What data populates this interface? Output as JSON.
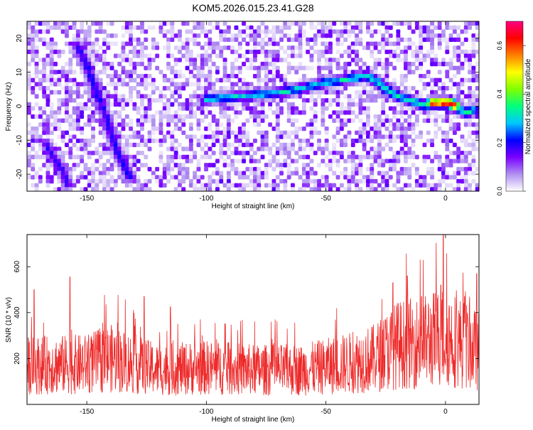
{
  "title": "KOM5.2026.015.23.41.G28",
  "chart_data": [
    {
      "type": "heatmap",
      "xlabel": "Height of straight line (km)",
      "ylabel": "Frequency (Hz)",
      "xlim": [
        -175,
        14
      ],
      "ylim": [
        -25,
        25
      ],
      "x_ticks": [
        -150,
        -100,
        -50,
        0
      ],
      "y_ticks": [
        -20,
        -10,
        0,
        10,
        20
      ],
      "colorbar": {
        "label": "Normalized spectral amplitude",
        "range": [
          0.0,
          0.7
        ],
        "ticks": [
          0.0,
          0.2,
          0.4,
          0.6
        ],
        "colors": [
          "#ffffff",
          "#b090f0",
          "#7a00ff",
          "#0000ff",
          "#00c8ff",
          "#00ff7f",
          "#7fff00",
          "#ffff00",
          "#ff8000",
          "#ff0000",
          "#ff0080"
        ]
      },
      "ridges": [
        {
          "points": [
            [
              -154,
              18
            ],
            [
              -150,
              12
            ],
            [
              -148,
              8
            ],
            [
              -146,
              4
            ],
            [
              -142,
              -3
            ],
            [
              -140,
              -8
            ],
            [
              -137,
              -14
            ],
            [
              -134,
              -18
            ],
            [
              -132,
              -21
            ]
          ],
          "amplitude": 0.22
        },
        {
          "points": [
            [
              -167,
              -11
            ],
            [
              -165,
              -14
            ],
            [
              -162,
              -17
            ],
            [
              -160,
              -19
            ],
            [
              -158,
              -23
            ]
          ],
          "amplitude": 0.2
        },
        {
          "points": [
            [
              -100,
              2
            ],
            [
              -85,
              3
            ],
            [
              -70,
              4
            ],
            [
              -62,
              5
            ],
            [
              -50,
              7
            ],
            [
              -40,
              8
            ],
            [
              -33,
              9
            ],
            [
              -28,
              7
            ],
            [
              -25,
              5
            ],
            [
              -20,
              3
            ],
            [
              -16,
              2
            ],
            [
              -12,
              1
            ],
            [
              -8,
              0
            ],
            [
              -4,
              1
            ],
            [
              0,
              1
            ],
            [
              3,
              0
            ],
            [
              6,
              -1
            ],
            [
              9,
              -2
            ],
            [
              12,
              -1
            ]
          ],
          "amplitude": 0.35
        },
        {
          "points": [
            [
              -6,
              1
            ],
            [
              -2,
              1
            ],
            [
              2,
              1
            ],
            [
              4,
              0
            ]
          ],
          "amplitude": 0.68
        }
      ]
    },
    {
      "type": "line",
      "xlabel": "Height of straight line (km)",
      "ylabel": "SNR (10 * v/v)",
      "xlim": [
        -175,
        14
      ],
      "ylim": [
        0,
        740
      ],
      "x_ticks": [
        -150,
        -100,
        -50,
        0
      ],
      "y_ticks": [
        200,
        400,
        600
      ],
      "series": [
        {
          "color": "#ee2a2a",
          "baseline": [
            [
              -175,
              170
            ],
            [
              -150,
              175
            ],
            [
              -140,
              200
            ],
            [
              -120,
              150
            ],
            [
              -100,
              160
            ],
            [
              -80,
              150
            ],
            [
              -60,
              150
            ],
            [
              -40,
              180
            ],
            [
              -30,
              200
            ],
            [
              -20,
              260
            ],
            [
              -10,
              270
            ],
            [
              0,
              300
            ],
            [
              14,
              230
            ]
          ],
          "peaks": [
            [
              -172,
              500
            ],
            [
              -157,
              555
            ],
            [
              -126,
              470
            ],
            [
              -115,
              425
            ],
            [
              -22,
              530
            ],
            [
              -16,
              560
            ],
            [
              -10,
              470
            ],
            [
              -2,
              520
            ],
            [
              -1,
              740
            ],
            [
              8,
              470
            ],
            [
              13,
              570
            ]
          ]
        }
      ]
    }
  ]
}
